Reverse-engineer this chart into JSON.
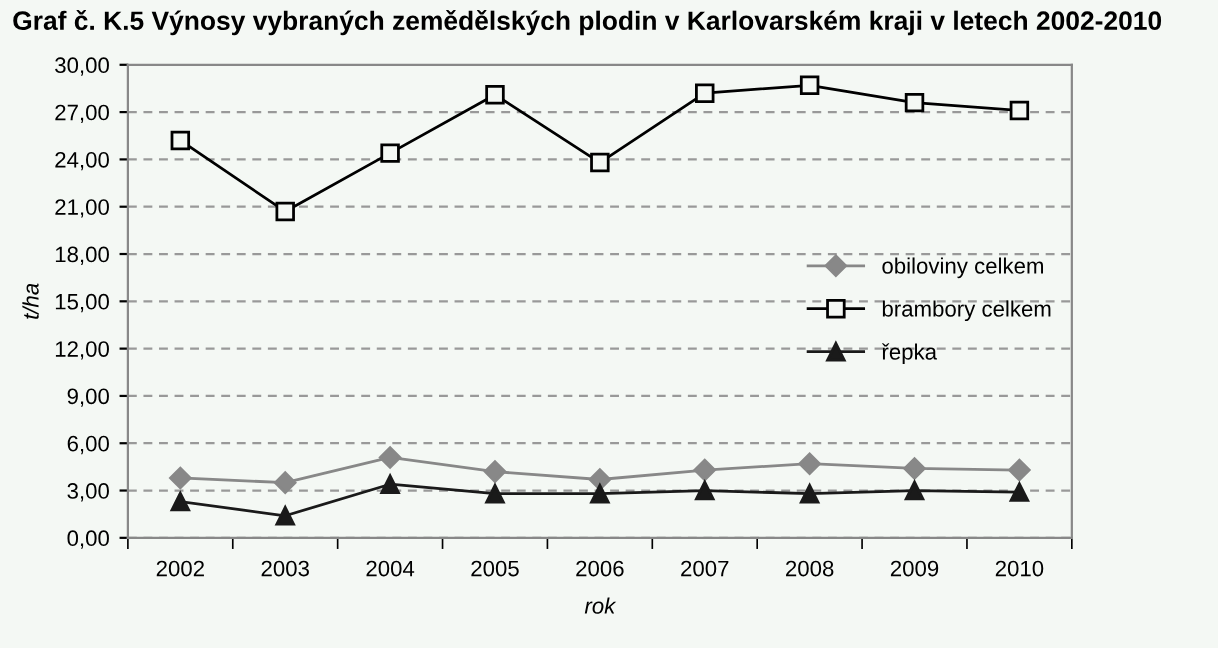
{
  "chart_data": {
    "type": "line",
    "title": "Graf č. K.5 Výnosy vybraných zemědělských plodin v Karlovarském kraji v letech 2002-2010",
    "xlabel": "rok",
    "ylabel": "t/ha",
    "categories": [
      "2002",
      "2003",
      "2004",
      "2005",
      "2006",
      "2007",
      "2008",
      "2009",
      "2010"
    ],
    "series": [
      {
        "name": "obiloviny celkem",
        "color": "#888888",
        "marker": "diamond",
        "values": [
          3.8,
          3.5,
          5.1,
          4.2,
          3.7,
          4.3,
          4.7,
          4.4,
          4.3
        ]
      },
      {
        "name": "brambory celkem",
        "color": "#000000",
        "marker": "square",
        "values": [
          25.2,
          20.7,
          24.4,
          28.1,
          23.8,
          28.2,
          28.7,
          27.6,
          27.1
        ]
      },
      {
        "name": "řepka",
        "color": "#1a1a1a",
        "marker": "triangle",
        "values": [
          2.3,
          1.4,
          3.4,
          2.8,
          2.8,
          3.0,
          2.8,
          3.0,
          2.9
        ]
      }
    ],
    "ylim": [
      0,
      30
    ],
    "yticks": [
      {
        "value": 0,
        "label": "0,00"
      },
      {
        "value": 3,
        "label": "3,00"
      },
      {
        "value": 6,
        "label": "6,00"
      },
      {
        "value": 9,
        "label": "9,00"
      },
      {
        "value": 12,
        "label": "12,00"
      },
      {
        "value": 15,
        "label": "15,00"
      },
      {
        "value": 18,
        "label": "18,00"
      },
      {
        "value": 21,
        "label": "21,00"
      },
      {
        "value": 24,
        "label": "24,00"
      },
      {
        "value": 27,
        "label": "27,00"
      },
      {
        "value": 30,
        "label": "30,00"
      }
    ],
    "grid": "y",
    "legend": "right",
    "line_style": "solid"
  }
}
